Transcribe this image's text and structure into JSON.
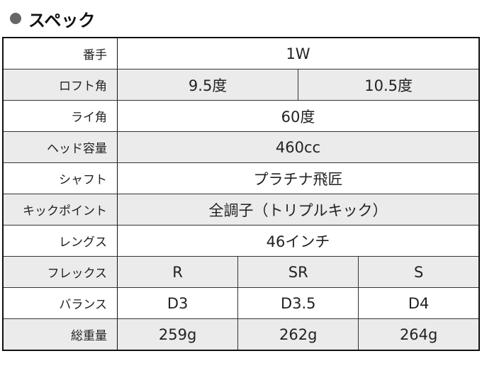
{
  "title": "スペック",
  "rows": [
    {
      "label": "番手",
      "values": [
        "1W"
      ]
    },
    {
      "label": "ロフト角",
      "values": [
        "9.5度",
        "10.5度"
      ]
    },
    {
      "label": "ライ角",
      "values": [
        "60度"
      ]
    },
    {
      "label": "ヘッド容量",
      "values": [
        "460cc"
      ]
    },
    {
      "label": "シャフト",
      "values": [
        "プラチナ飛匠"
      ]
    },
    {
      "label": "キックポイント",
      "values": [
        "全調子（トリプルキック）"
      ]
    },
    {
      "label": "レングス",
      "values": [
        "46インチ"
      ]
    },
    {
      "label": "フレックス",
      "values": [
        "R",
        "SR",
        "S"
      ]
    },
    {
      "label": "バランス",
      "values": [
        "D3",
        "D3.5",
        "D4"
      ]
    },
    {
      "label": "総重量",
      "values": [
        "259g",
        "262g",
        "264g"
      ]
    }
  ]
}
